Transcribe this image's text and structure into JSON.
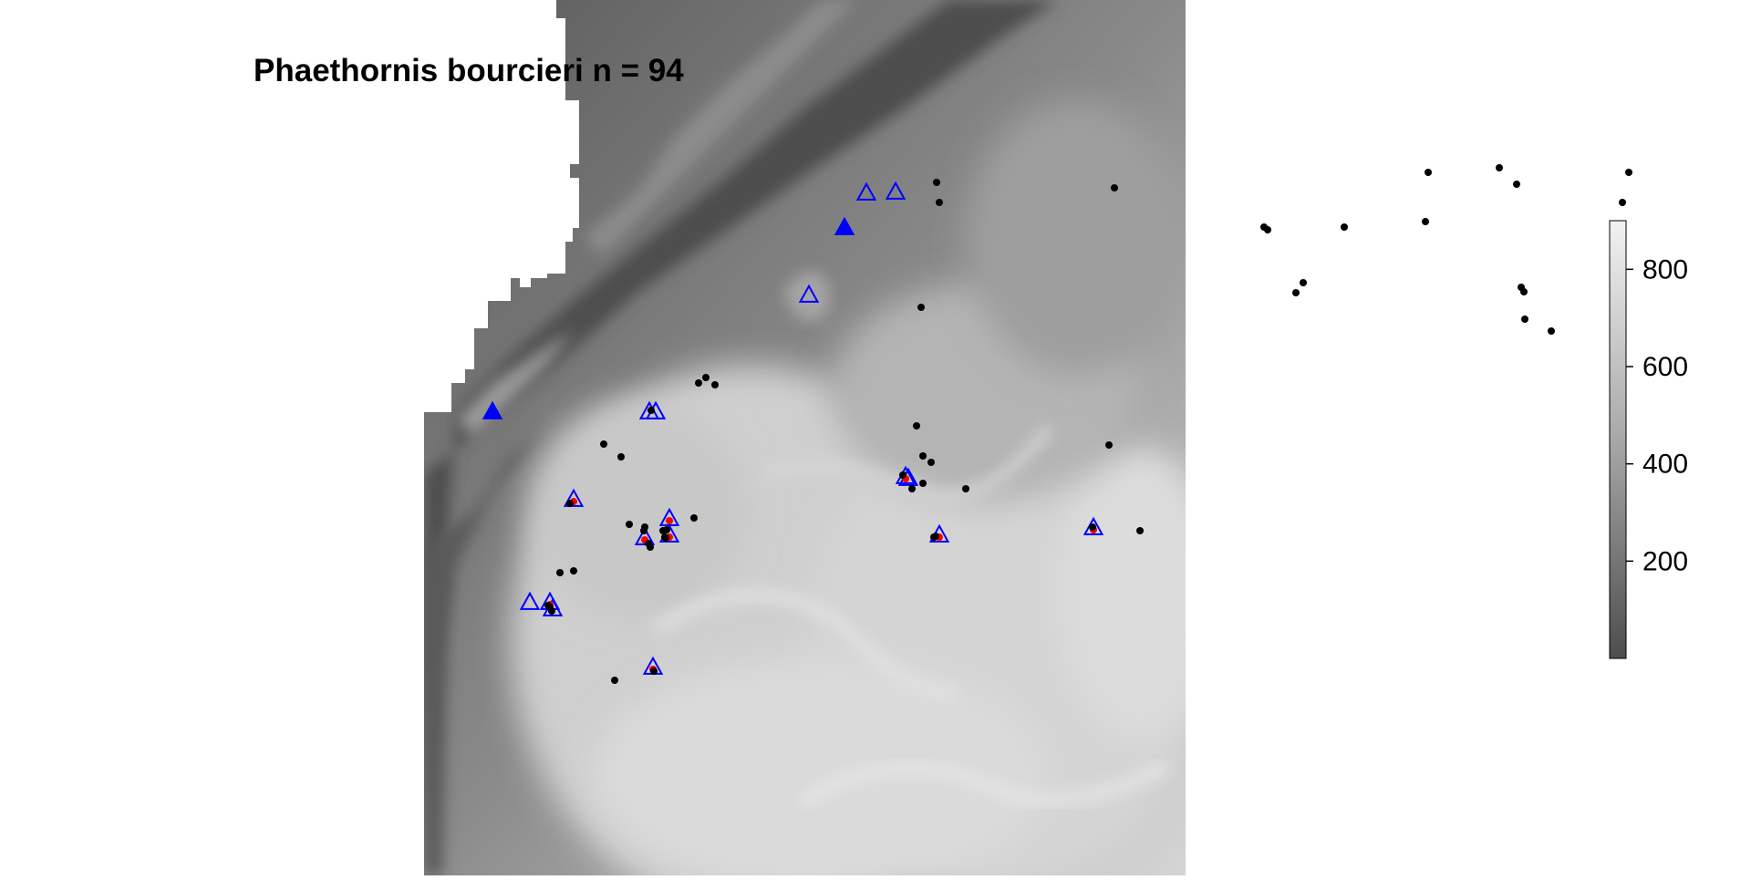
{
  "plot": {
    "title": "Phaethornis bourcieri n = 94"
  },
  "colors": {
    "background": "#ffffff",
    "terrain_low": "#4d4d4d",
    "terrain_high": "#f2f2f2",
    "open_triangle": "#0000ff",
    "filled_triangle": "#0000ff",
    "occurrence_point": "#000000",
    "model_point": "#ff0000"
  },
  "legend": {
    "type": "continuous grayscale",
    "value_range": [
      0,
      900
    ],
    "ticks": [
      {
        "value": 200,
        "label": "200"
      },
      {
        "value": 400,
        "label": "400"
      },
      {
        "value": 600,
        "label": "600"
      },
      {
        "value": 800,
        "label": "800"
      }
    ]
  },
  "markers": {
    "open_triangles": 17,
    "filled_blue_triangles": 2,
    "black_points_on_map": 40,
    "black_points_outside_map": 15
  }
}
